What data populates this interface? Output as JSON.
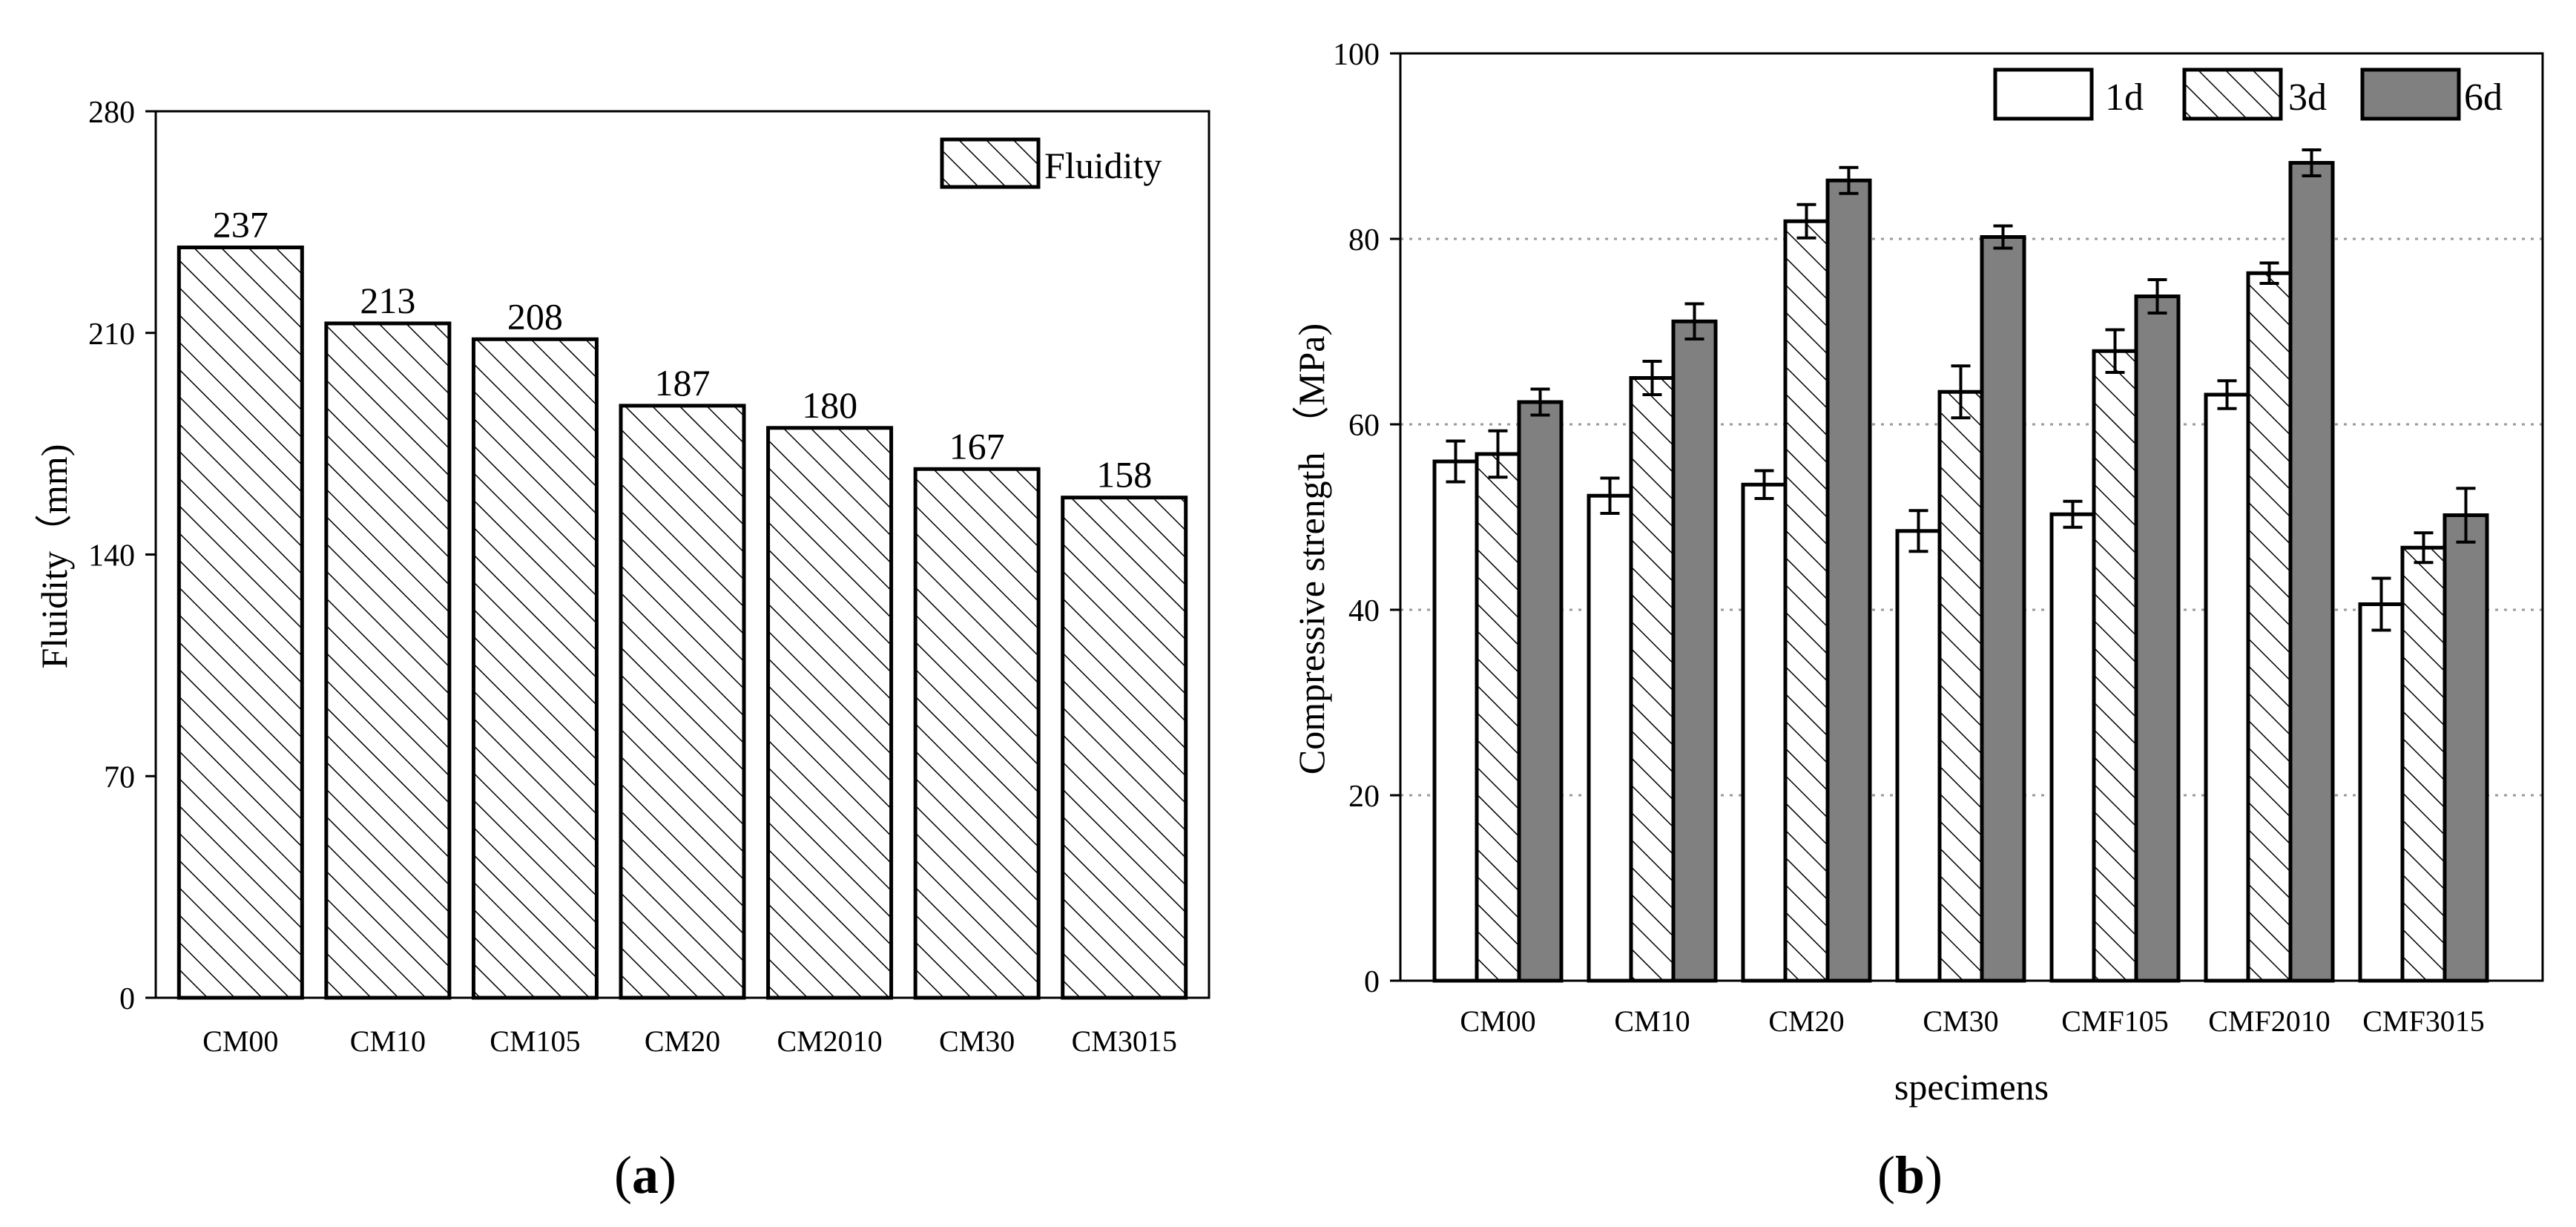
{
  "colors": {
    "bar_hatch_stroke": "#000000",
    "bar_white_fill": "#ffffff",
    "bar_6d_fill": "#808080",
    "grid": "#9a9a9a",
    "text": "#000000"
  },
  "chart_data": [
    {
      "panel": "(a)",
      "panel_paren_open": "(",
      "panel_letter": "a",
      "panel_paren_close": ")",
      "type": "bar",
      "title": "",
      "xlabel": "",
      "ylabel": "Fluidity（mm)",
      "ylim": [
        0,
        280
      ],
      "yticks": [
        "0",
        "70",
        "140",
        "210",
        "280"
      ],
      "grid": false,
      "legend_position": "top-right",
      "categories": [
        "CM00",
        "CM10",
        "CM105",
        "CM20",
        "CM2010",
        "CM30",
        "CM3015"
      ],
      "series": [
        {
          "name": "Fluidity",
          "fill": "hatch",
          "values": [
            237,
            213,
            208,
            187,
            180,
            167,
            158
          ],
          "labels": [
            "237",
            "213",
            "208",
            "187",
            "180",
            "167",
            "158"
          ]
        }
      ]
    },
    {
      "panel": "(b)",
      "panel_paren_open": "(",
      "panel_letter": "b",
      "panel_paren_close": ")",
      "type": "bar",
      "title": "",
      "xlabel": "specimens",
      "ylabel": "Compressive strength （MPa)",
      "ylim": [
        0,
        100
      ],
      "yticks": [
        "0",
        "20",
        "40",
        "60",
        "80",
        "100"
      ],
      "grid": true,
      "legend_position": "top-right",
      "categories": [
        "CM00",
        "CM10",
        "CM20",
        "CM30",
        "CMF105",
        "CMF2010",
        "CMF3015"
      ],
      "series": [
        {
          "name": "1d",
          "fill": "white",
          "values": [
            56.0,
            52.3,
            53.5,
            48.5,
            50.3,
            63.2,
            40.6
          ],
          "errors": [
            2.2,
            1.9,
            1.5,
            2.2,
            1.4,
            1.5,
            2.8
          ]
        },
        {
          "name": "3d",
          "fill": "hatch",
          "values": [
            56.8,
            65.0,
            81.9,
            63.5,
            67.9,
            76.3,
            46.7
          ],
          "errors": [
            2.5,
            1.8,
            1.8,
            2.8,
            2.3,
            1.1,
            1.6
          ]
        },
        {
          "name": "6d",
          "fill": "gray",
          "values": [
            62.4,
            71.1,
            86.3,
            80.2,
            73.8,
            88.2,
            50.2
          ],
          "errors": [
            1.4,
            1.9,
            1.4,
            1.2,
            1.8,
            1.4,
            2.9
          ]
        }
      ]
    }
  ]
}
